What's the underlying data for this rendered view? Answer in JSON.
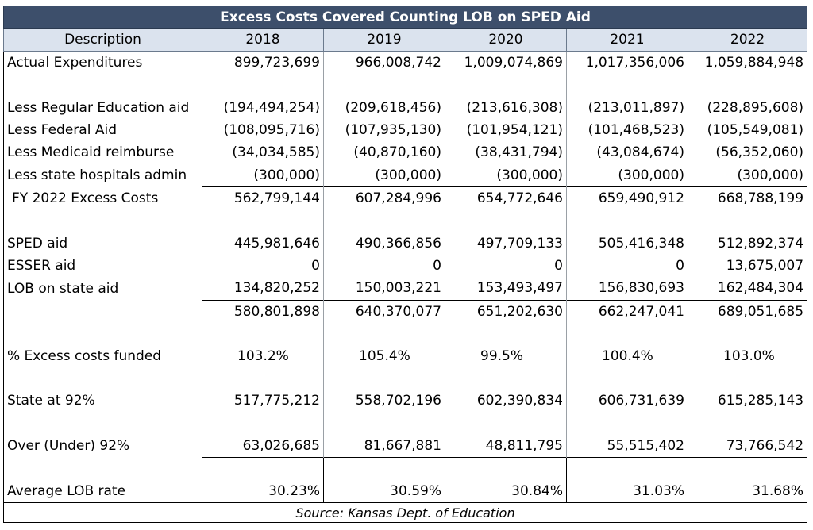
{
  "title": "Excess Costs Covered Counting LOB on SPED Aid",
  "header": [
    "Description",
    "2018",
    "2019",
    "2020",
    "2021",
    "2022"
  ],
  "rows": {
    "actual": {
      "label": "Actual Expenditures",
      "values": [
        "899,723,699",
        "966,008,742",
        "1,009,074,869",
        "1,017,356,006",
        "1,059,884,948"
      ]
    },
    "reg_ed": {
      "label": "Less Regular Education aid",
      "values": [
        "(194,494,254)",
        "(209,618,456)",
        "(213,616,308)",
        "(213,011,897)",
        "(228,895,608)"
      ]
    },
    "federal": {
      "label": "Less Federal Aid",
      "values": [
        "(108,095,716)",
        "(107,935,130)",
        "(101,954,121)",
        "(101,468,523)",
        "(105,549,081)"
      ]
    },
    "medicaid": {
      "label": "Less Medicaid reimburse",
      "values": [
        "(34,034,585)",
        "(40,870,160)",
        "(38,431,794)",
        "(43,084,674)",
        "(56,352,060)"
      ]
    },
    "hospitals": {
      "label": "Less state hospitals admin",
      "values": [
        "(300,000)",
        "(300,000)",
        "(300,000)",
        "(300,000)",
        "(300,000)"
      ]
    },
    "excess": {
      "label": "FY 2022 Excess Costs",
      "values": [
        "562,799,144",
        "607,284,996",
        "654,772,646",
        "659,490,912",
        "668,788,199"
      ]
    },
    "sped": {
      "label": "SPED aid",
      "values": [
        "445,981,646",
        "490,366,856",
        "497,709,133",
        "505,416,348",
        "512,892,374"
      ]
    },
    "esser": {
      "label": "ESSER aid",
      "values": [
        "0",
        "0",
        "0",
        "0",
        "13,675,007"
      ]
    },
    "lob": {
      "label": "LOB on state aid",
      "values": [
        "134,820,252",
        "150,003,221",
        "153,493,497",
        "156,830,693",
        "162,484,304"
      ]
    },
    "total": {
      "label": "",
      "values": [
        "580,801,898",
        "640,370,077",
        "651,202,630",
        "662,247,041",
        "689,051,685"
      ]
    },
    "pct_funded": {
      "label": "% Excess costs funded",
      "values": [
        "103.2%",
        "105.4%",
        "99.5%",
        "100.4%",
        "103.0%"
      ]
    },
    "state92": {
      "label": "State at 92%",
      "values": [
        "517,775,212",
        "558,702,196",
        "602,390,834",
        "606,731,639",
        "615,285,143"
      ]
    },
    "over_under": {
      "label": "Over (Under) 92%",
      "values": [
        "63,026,685",
        "81,667,881",
        "48,811,795",
        "55,515,402",
        "73,766,542"
      ]
    },
    "avg_lob": {
      "label": "Average LOB rate",
      "values": [
        "30.23%",
        "30.59%",
        "30.84%",
        "31.03%",
        "31.68%"
      ]
    }
  },
  "source": "Source: Kansas Dept. of Education",
  "colors": {
    "title_bg": "#3d4f6b",
    "header_bg": "#dbe3ee"
  }
}
